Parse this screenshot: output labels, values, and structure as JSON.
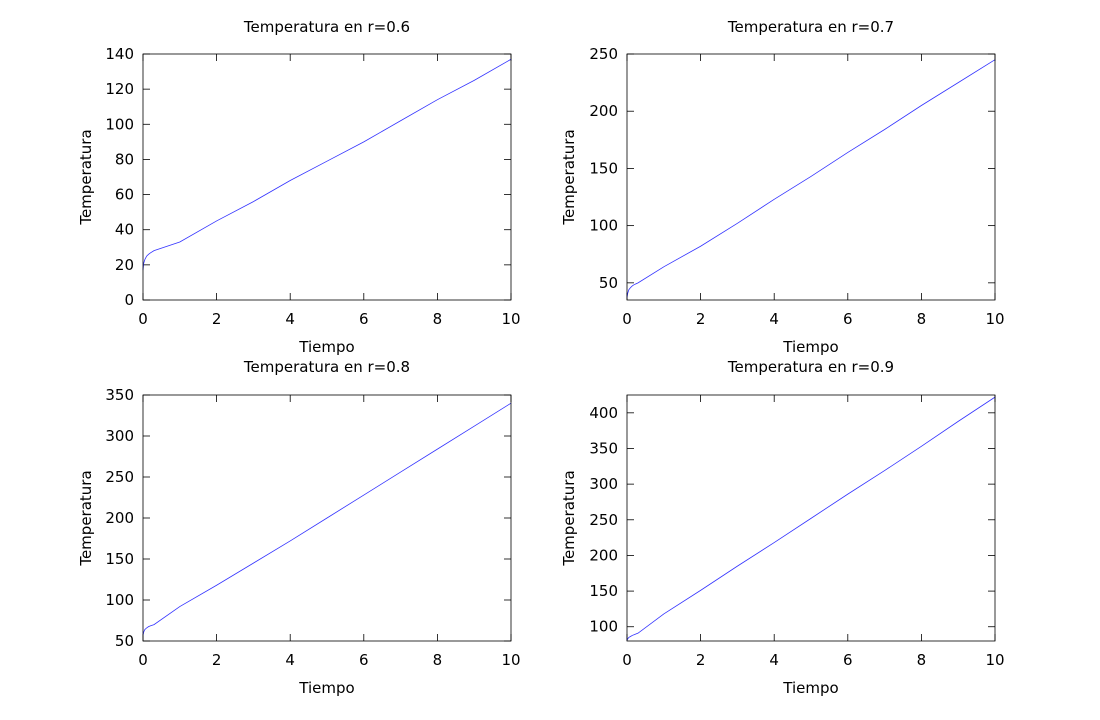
{
  "colors": {
    "series_line": "#3333ff",
    "axes": "#000000",
    "background": "#ffffff"
  },
  "chart_data": [
    {
      "type": "line",
      "title": "Temperatura en r=0.6",
      "xlabel": "Tiempo",
      "ylabel": "Temperatura",
      "xlim": [
        0,
        10
      ],
      "ylim": [
        0,
        140
      ],
      "xticks": [
        0,
        2,
        4,
        6,
        8,
        10
      ],
      "yticks": [
        0,
        20,
        40,
        60,
        80,
        100,
        120,
        140
      ],
      "grid": false,
      "series": [
        {
          "x": [
            0,
            0.02,
            0.05,
            0.1,
            0.15,
            0.2,
            0.3,
            1,
            2,
            3,
            4,
            5,
            6,
            7,
            8,
            9,
            10
          ],
          "y": [
            17,
            21,
            23,
            25,
            26,
            26.8,
            28.1,
            33,
            45,
            56,
            68,
            79,
            90,
            102,
            114,
            125,
            137
          ]
        }
      ]
    },
    {
      "type": "line",
      "title": "Temperatura en r=0.7",
      "xlabel": "Tiempo",
      "ylabel": "Temperatura",
      "xlim": [
        0,
        10
      ],
      "ylim": [
        35,
        250
      ],
      "xticks": [
        0,
        2,
        4,
        6,
        8,
        10
      ],
      "yticks": [
        50,
        100,
        150,
        200,
        250
      ],
      "grid": false,
      "series": [
        {
          "x": [
            0,
            0.02,
            0.05,
            0.1,
            0.15,
            0.2,
            0.3,
            1,
            2,
            3,
            4,
            5,
            6,
            7,
            8,
            9,
            10
          ],
          "y": [
            37,
            41,
            44,
            46,
            47.5,
            48.5,
            50,
            64,
            82,
            102,
            123,
            143,
            164,
            184,
            205,
            225,
            245
          ]
        }
      ]
    },
    {
      "type": "line",
      "title": "Temperatura en r=0.8",
      "xlabel": "Tiempo",
      "ylabel": "Temperatura",
      "xlim": [
        0,
        10
      ],
      "ylim": [
        50,
        350
      ],
      "xticks": [
        0,
        2,
        4,
        6,
        8,
        10
      ],
      "yticks": [
        50,
        100,
        150,
        200,
        250,
        300,
        350
      ],
      "grid": false,
      "series": [
        {
          "x": [
            0,
            0.02,
            0.05,
            0.1,
            0.15,
            0.2,
            0.3,
            1,
            2,
            3,
            4,
            5,
            6,
            7,
            8,
            9,
            10
          ],
          "y": [
            57,
            61,
            64,
            66,
            67.5,
            68.5,
            70,
            92,
            118,
            145,
            172,
            200,
            228,
            256,
            284,
            312,
            340
          ]
        }
      ]
    },
    {
      "type": "line",
      "title": "Temperatura en r=0.9",
      "xlabel": "Tiempo",
      "ylabel": "Temperatura",
      "xlim": [
        0,
        10
      ],
      "ylim": [
        80,
        425
      ],
      "xticks": [
        0,
        2,
        4,
        6,
        8,
        10
      ],
      "yticks": [
        100,
        150,
        200,
        250,
        300,
        350,
        400
      ],
      "grid": false,
      "series": [
        {
          "x": [
            0,
            0.02,
            0.05,
            0.1,
            0.15,
            0.2,
            0.3,
            1,
            2,
            3,
            4,
            5,
            6,
            7,
            8,
            9,
            10
          ],
          "y": [
            81,
            83,
            85,
            86.5,
            88,
            89,
            91,
            118,
            151,
            185,
            218,
            252,
            286,
            319,
            353,
            388,
            422
          ]
        }
      ]
    }
  ]
}
